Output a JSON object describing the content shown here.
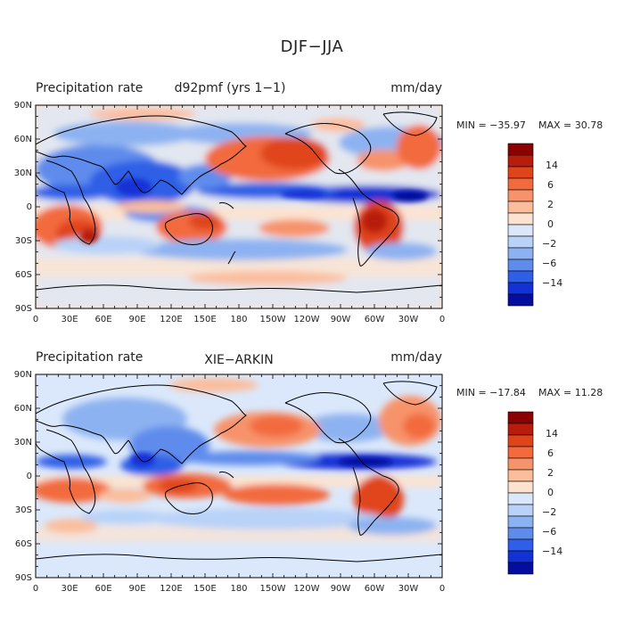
{
  "figure": {
    "title": "DJF−JJA"
  },
  "axes": {
    "lat_ticks": [
      "90N",
      "60N",
      "30N",
      "0",
      "30S",
      "60S",
      "90S"
    ],
    "lon_ticks": [
      "0",
      "30E",
      "60E",
      "90E",
      "120E",
      "150E",
      "180",
      "150W",
      "120W",
      "90W",
      "60W",
      "30W",
      "0"
    ]
  },
  "panels": [
    {
      "left_title": "Precipitation rate",
      "center_title": "d92pmf (yrs 1−1)",
      "units": "mm/day",
      "min_label": "MIN = −35.97",
      "max_label": "MAX =  30.78",
      "colorbar_labels": [
        "14",
        "6",
        "2",
        "0",
        "−2",
        "−6",
        "−14"
      ]
    },
    {
      "left_title": "Precipitation rate",
      "center_title": "XIE−ARKIN",
      "units": "mm/day",
      "min_label": "MIN = −17.84",
      "max_label": "MAX =  11.28",
      "colorbar_labels": [
        "14",
        "6",
        "2",
        "0",
        "−2",
        "−6",
        "−14"
      ]
    }
  ],
  "colors": {
    "scale": [
      "#8b0000",
      "#b81c0c",
      "#e0441b",
      "#f26a3e",
      "#f7936b",
      "#fbbd9c",
      "#fde3cf",
      "#dbe8fb",
      "#b8d2f8",
      "#8db2f1",
      "#5f8cec",
      "#2f5fe6",
      "#1232d6",
      "#030e9e"
    ],
    "land": "#000000"
  }
}
